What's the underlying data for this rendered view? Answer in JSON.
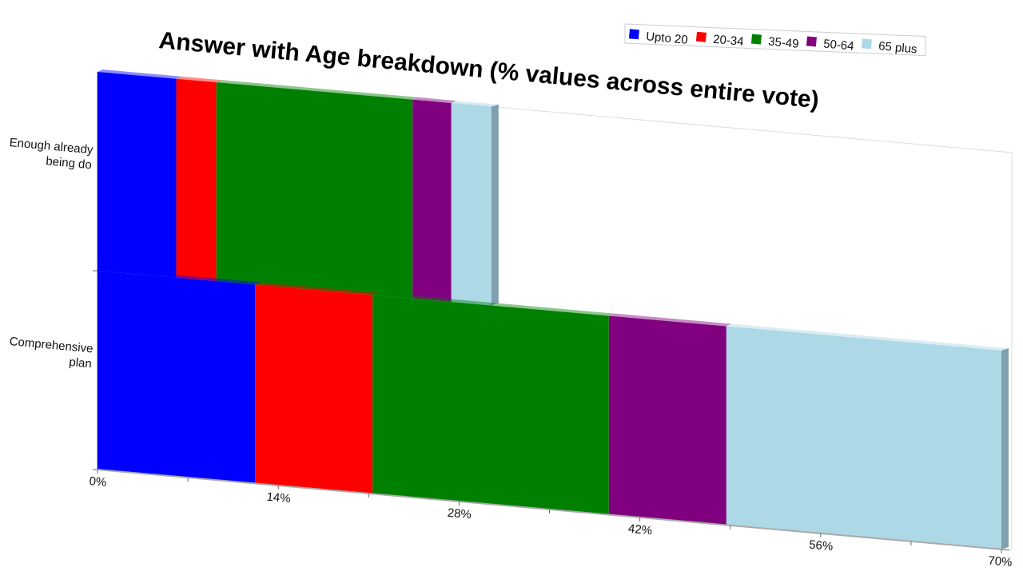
{
  "chart_data": {
    "type": "bar",
    "orientation": "horizontal",
    "stacked": true,
    "title": "Answer with Age breakdown (% values across entire vote)",
    "xlabel": "",
    "ylabel": "",
    "xlim": [
      0,
      70
    ],
    "x_ticks": [
      "0%",
      "14%",
      "28%",
      "42%",
      "56%",
      "70%"
    ],
    "categories": [
      "Enough already\nbeing do",
      "Comprehensive\nplan"
    ],
    "series": [
      {
        "name": "Upto 20",
        "color": "#0000ff",
        "values": [
          6.1,
          12.2
        ]
      },
      {
        "name": "20-34",
        "color": "#ff0000",
        "values": [
          3.1,
          9.1
        ]
      },
      {
        "name": "35-49",
        "color": "#008000",
        "values": [
          15.2,
          18.3
        ]
      },
      {
        "name": "50-64",
        "color": "#800080",
        "values": [
          3.0,
          9.1
        ]
      },
      {
        "name": "65 plus",
        "color": "#add8e6",
        "values": [
          3.1,
          21.3
        ]
      }
    ],
    "legend": "top-right",
    "grid": false
  }
}
